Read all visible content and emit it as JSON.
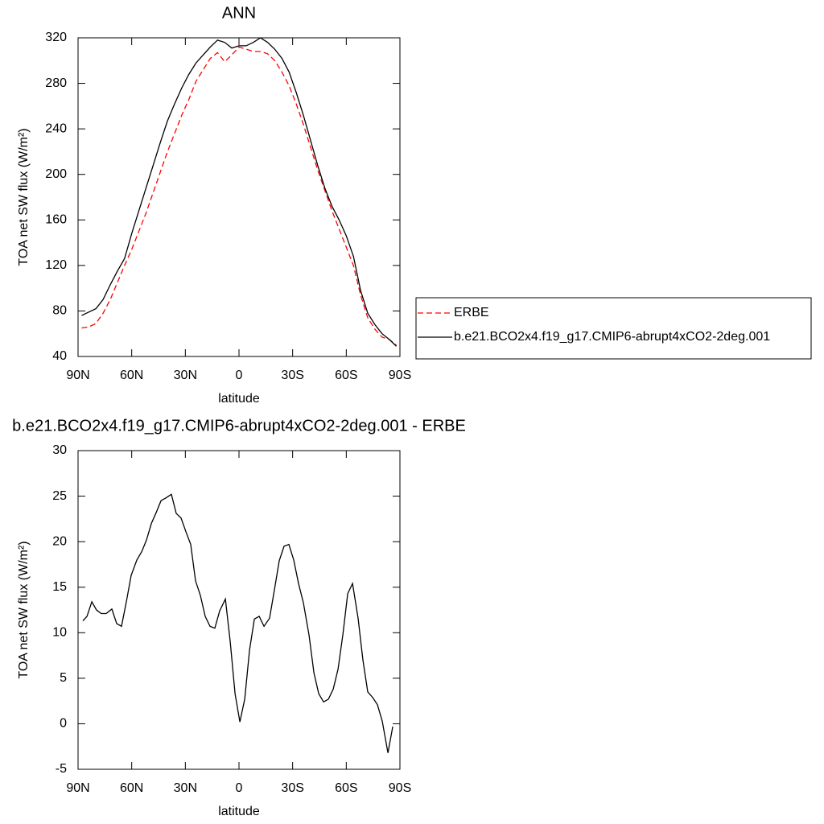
{
  "chart_data": [
    {
      "type": "line",
      "title": "ANN",
      "xlabel": "latitude",
      "ylabel": "TOA net SW flux (W/m²)",
      "xlim": [
        90,
        -90
      ],
      "xticks": [
        {
          "value": 90,
          "label": "90N"
        },
        {
          "value": 60,
          "label": "60N"
        },
        {
          "value": 30,
          "label": "30N"
        },
        0,
        {
          "value": -30,
          "label": "30S"
        },
        {
          "value": -60,
          "label": "60S"
        },
        {
          "value": -90,
          "label": "90S"
        }
      ],
      "ylim": [
        40,
        320
      ],
      "yticks": [
        40,
        80,
        120,
        160,
        200,
        240,
        280,
        320
      ],
      "legend": "outside right",
      "x": [
        88,
        84,
        80,
        76,
        72,
        68,
        64,
        60,
        56,
        52,
        48,
        44,
        40,
        36,
        32,
        28,
        24,
        20,
        16,
        12,
        8,
        4,
        0,
        -4,
        -8,
        -12,
        -16,
        -20,
        -24,
        -28,
        -32,
        -36,
        -40,
        -44,
        -48,
        -52,
        -56,
        -60,
        -64,
        -68,
        -72,
        -76,
        -80,
        -84,
        -88
      ],
      "series": [
        {
          "name": "ERBE",
          "color": "#ff0000",
          "dashed": true,
          "values": [
            65,
            66,
            69,
            78,
            90,
            105,
            120,
            134,
            150,
            166,
            184,
            202,
            220,
            236,
            252,
            266,
            282,
            292,
            302,
            307,
            299,
            305,
            312,
            310,
            308,
            308,
            306,
            300,
            290,
            278,
            262,
            244,
            224,
            204,
            186,
            168,
            152,
            136,
            120,
            94,
            74,
            64,
            57,
            55,
            50
          ]
        },
        {
          "name": "b.e21.BCO2x4.f19_g17.CMIP6-abrupt4xCO2-2deg.001",
          "color": "#000000",
          "dashed": false,
          "values": [
            76,
            79,
            82,
            90,
            103,
            115,
            126,
            148,
            168,
            188,
            208,
            228,
            247,
            262,
            276,
            288,
            298,
            305,
            312,
            318,
            316,
            311,
            313,
            313,
            316,
            320,
            316,
            310,
            302,
            290,
            272,
            252,
            230,
            208,
            188,
            172,
            160,
            146,
            128,
            98,
            78,
            68,
            60,
            55,
            49
          ]
        }
      ]
    },
    {
      "type": "line",
      "title": "b.e21.BCO2x4.f19_g17.CMIP6-abrupt4xCO2-2deg.001 - ERBE",
      "xlabel": "latitude",
      "ylabel": "TOA net SW flux (W/m²)",
      "xlim": [
        90,
        -90
      ],
      "xticks": [
        {
          "value": 90,
          "label": "90N"
        },
        {
          "value": 60,
          "label": "60N"
        },
        {
          "value": 30,
          "label": "30N"
        },
        0,
        {
          "value": -30,
          "label": "30S"
        },
        {
          "value": -60,
          "label": "60S"
        },
        {
          "value": -90,
          "label": "90S"
        }
      ],
      "ylim": [
        -5,
        30
      ],
      "yticks": [
        -5,
        0,
        5,
        10,
        15,
        20,
        25,
        30
      ],
      "x": [
        87.3,
        85,
        82.3,
        79.7,
        77,
        74.3,
        71.1,
        68.4,
        65.7,
        63,
        60.3,
        57.1,
        54.4,
        51.7,
        49,
        46.3,
        43.6,
        40.9,
        37.8,
        35.1,
        32.4,
        29.7,
        27,
        24.3,
        21.6,
        18.9,
        16.2,
        13.5,
        10.8,
        7.6,
        4.9,
        2.2,
        -0.5,
        -3.2,
        -5.9,
        -8.6,
        -11.3,
        -14,
        -17.1,
        -19.8,
        -22.5,
        -25.2,
        -27.9,
        -30.6,
        -33.3,
        -36,
        -39.2,
        -41.9,
        -44.6,
        -47.3,
        -50,
        -52.7,
        -55.4,
        -58.1,
        -60.8,
        -63.5,
        -66.6,
        -69.3,
        -72,
        -74.7,
        -77.4,
        -80.1,
        -83.3,
        -86
      ],
      "color": "#000000",
      "values": [
        11.3,
        11.8,
        13.4,
        12.5,
        12.1,
        12.1,
        12.6,
        11,
        10.7,
        13.4,
        16.3,
        18,
        18.9,
        20.2,
        22,
        23.2,
        24.5,
        24.8,
        25.2,
        23.1,
        22.6,
        21.1,
        19.7,
        15.7,
        14.1,
        11.8,
        10.7,
        10.5,
        12.4,
        13.7,
        9,
        3.3,
        0.2,
        2.7,
        8.1,
        11.5,
        11.8,
        10.7,
        11.6,
        14.7,
        17.9,
        19.5,
        19.7,
        18,
        15.4,
        13.3,
        9.7,
        5.6,
        3.3,
        2.4,
        2.7,
        3.8,
        6,
        9.8,
        14.3,
        15.4,
        11.6,
        7,
        3.5,
        2.9,
        2.1,
        0.3,
        -3.2,
        -0.3
      ]
    }
  ]
}
